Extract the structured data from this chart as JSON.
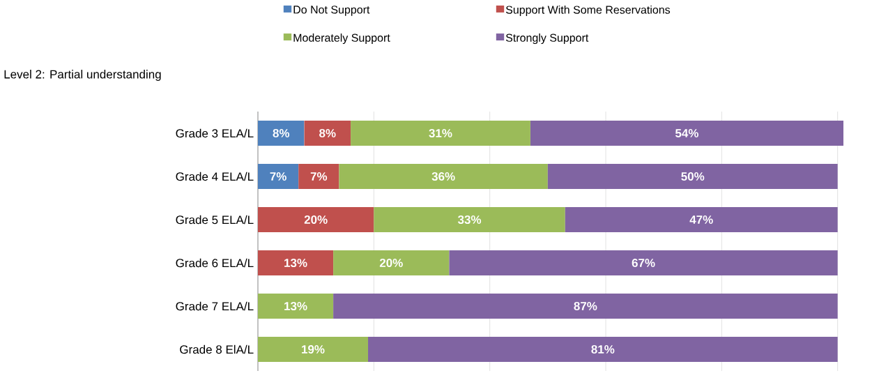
{
  "chart_data": {
    "type": "bar",
    "orientation": "horizontal",
    "stacked": true,
    "title": "Level 2:  Partial understanding",
    "categories": [
      "Grade 3 ELA/L",
      "Grade 4 ELA/L",
      "Grade 5 ELA/L",
      "Grade 6 ELA/L",
      "Grade 7 ELA/L",
      "Grade 8 ElA/L"
    ],
    "series": [
      {
        "name": "Do Not Support",
        "color": "#4f81bd",
        "values": [
          8,
          7,
          null,
          null,
          null,
          null
        ],
        "value_labels": [
          "8%",
          "7%",
          null,
          null,
          null,
          null
        ]
      },
      {
        "name": "Support With Some Reservations",
        "color": "#c0504d",
        "values": [
          8,
          7,
          20,
          13,
          null,
          null
        ],
        "value_labels": [
          "8%",
          "7%",
          "20%",
          "13%",
          null,
          null
        ]
      },
      {
        "name": "Moderately Support",
        "color": "#9bbb59",
        "values": [
          31,
          36,
          33,
          20,
          13,
          19
        ],
        "value_labels": [
          "31%",
          "36%",
          "33%",
          "20%",
          "13%",
          "19%"
        ]
      },
      {
        "name": "Strongly Support",
        "color": "#8064a2",
        "values": [
          54,
          50,
          47,
          67,
          87,
          81
        ],
        "value_labels": [
          "54%",
          "50%",
          "47%",
          "67%",
          "87%",
          "81%"
        ]
      }
    ],
    "xlim": [
      0,
      101
    ],
    "xticks": [
      {
        "value": 0,
        "label": null
      },
      {
        "value": 20,
        "label": null
      },
      {
        "value": 40,
        "label": null
      },
      {
        "value": 60,
        "label": null
      },
      {
        "value": 80,
        "label": null
      },
      {
        "value": 100,
        "label": null
      }
    ],
    "grid": "x",
    "legend": "top",
    "tick_labels": "y"
  }
}
